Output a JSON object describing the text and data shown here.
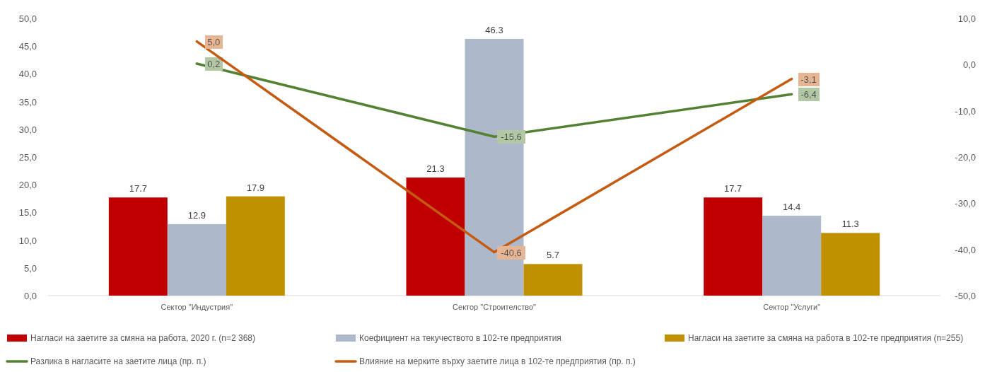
{
  "chart_data": {
    "type": "bar",
    "categories": [
      "Сектор \"Индустрия\"",
      "Сектор \"Строителство\"",
      "Сектор \"Услуги\""
    ],
    "series": [
      {
        "name": "Нагласи на заетите за смяна на работа, 2020 г. (n=2 368)",
        "color": "#c00000",
        "values": [
          17.7,
          21.3,
          17.7
        ],
        "value_labels": [
          "17.7",
          "21.3",
          "17.7"
        ]
      },
      {
        "name": "Коефициент на текучеството в 102-те предприятия",
        "color": "#adb9ca",
        "values": [
          12.9,
          46.3,
          14.4
        ],
        "value_labels": [
          "12.9",
          "46.3",
          "14.4"
        ]
      },
      {
        "name": "Нагласи на заетите за смяна на работа в 102-те предприятия (n=255)",
        "color": "#bf9000",
        "values": [
          17.9,
          5.7,
          11.3
        ],
        "value_labels": [
          "17.9",
          "5.7",
          "11.3"
        ]
      },
      {
        "name": "Разлика в нагласите на заетите лица (пр. п.)",
        "type": "line",
        "axis": "y2",
        "marker": "none",
        "color": "#548235",
        "values": [
          0.2,
          -15.6,
          -6.4
        ],
        "value_labels": [
          "0,2",
          "-15,6",
          "-6,4"
        ]
      },
      {
        "name": "Влияние на мерките върху заетите лица в 102-те предприятия (пр. п.)",
        "type": "line",
        "axis": "y2",
        "marker": "none",
        "color": "#c55a11",
        "values": [
          5.0,
          -40.6,
          -3.1
        ],
        "value_labels": [
          "5,0",
          "-40,6",
          "-3,1"
        ]
      }
    ],
    "ylim": [
      0,
      50
    ],
    "yticks": [
      {
        "value": 0,
        "label": "0,0"
      },
      {
        "value": 5,
        "label": "5,0"
      },
      {
        "value": 10,
        "label": "10,0"
      },
      {
        "value": 15,
        "label": "15,0"
      },
      {
        "value": 20,
        "label": "20,0"
      },
      {
        "value": 25,
        "label": "25,0"
      },
      {
        "value": 30,
        "label": "30,0"
      },
      {
        "value": 35,
        "label": "35,0"
      },
      {
        "value": 40,
        "label": "40,0"
      },
      {
        "value": 45,
        "label": "45,0"
      },
      {
        "value": 50,
        "label": "50,0"
      }
    ],
    "y2lim": [
      -50,
      10
    ],
    "y2ticks": [
      {
        "value": -50,
        "label": "-50,0"
      },
      {
        "value": -40,
        "label": "-40,0"
      },
      {
        "value": -30,
        "label": "-30,0"
      },
      {
        "value": -20,
        "label": "-20,0"
      },
      {
        "value": -10,
        "label": "-10,0"
      },
      {
        "value": 0,
        "label": "0,0"
      },
      {
        "value": 10,
        "label": "10,0"
      }
    ],
    "legend": "bottom",
    "grid": false
  }
}
